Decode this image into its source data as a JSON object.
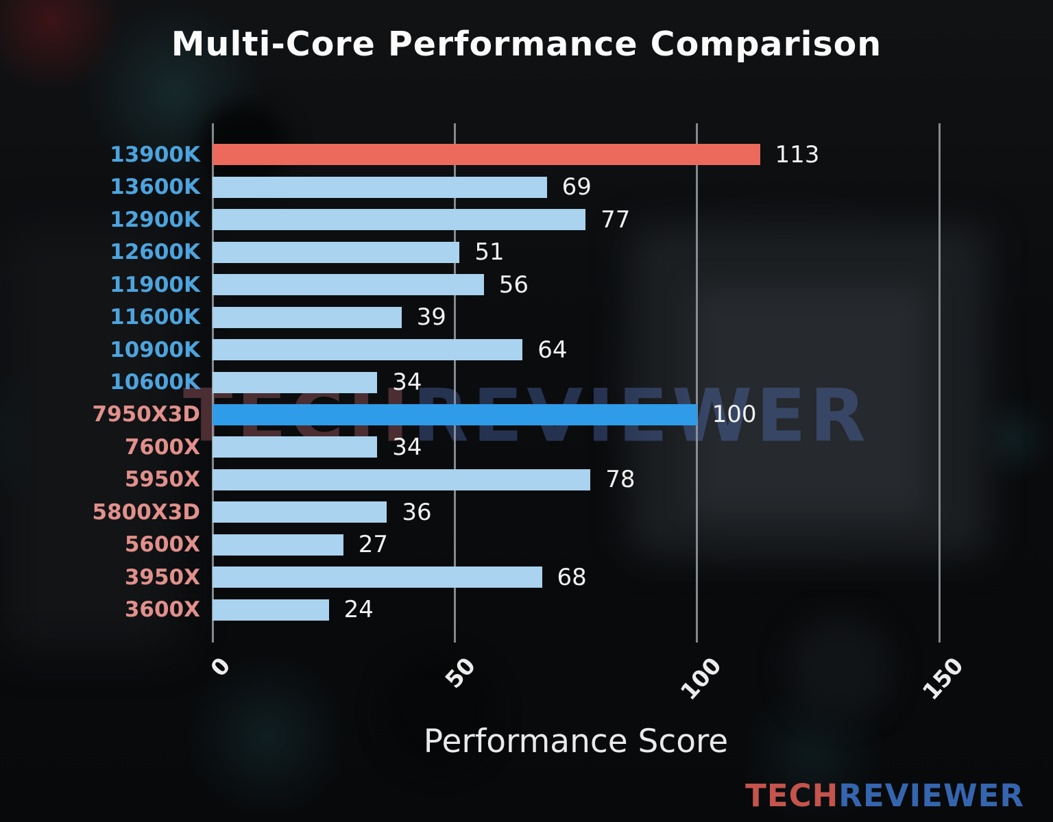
{
  "chart_data": {
    "type": "bar",
    "orientation": "horizontal",
    "title": "Multi-Core Performance Comparison",
    "xlabel": "Performance Score",
    "xlim": [
      0,
      150
    ],
    "xticks": [
      0,
      50,
      100,
      150
    ],
    "grid": "vertical gridlines on",
    "categories": [
      "13900K",
      "13600K",
      "12900K",
      "12600K",
      "11900K",
      "11600K",
      "10900K",
      "10600K",
      "7950X3D",
      "7600X",
      "5950X",
      "5800X3D",
      "5600X",
      "3950X",
      "3600X"
    ],
    "values": [
      113,
      69,
      77,
      51,
      56,
      39,
      64,
      34,
      100,
      34,
      78,
      36,
      27,
      68,
      24
    ],
    "bar_colors": [
      "#eb6a5c",
      "#a9d3ef",
      "#a9d3ef",
      "#a9d3ef",
      "#a9d3ef",
      "#a9d3ef",
      "#a9d3ef",
      "#a9d3ef",
      "#2e9ce9",
      "#a9d3ef",
      "#a9d3ef",
      "#a9d3ef",
      "#a9d3ef",
      "#a9d3ef",
      "#a9d3ef"
    ],
    "label_colors": [
      "#4da4de",
      "#4da4de",
      "#4da4de",
      "#4da4de",
      "#4da4de",
      "#4da4de",
      "#4da4de",
      "#4da4de",
      "#e2908c",
      "#e2908c",
      "#e2908c",
      "#e2908c",
      "#e2908c",
      "#e2908c",
      "#e2908c"
    ],
    "colors": {
      "highlight_bar": "#eb6a5c",
      "accent_bar": "#2e9ce9",
      "default_bar": "#a9d3ef",
      "intel_label": "#4da4de",
      "amd_label": "#e2908c",
      "gridline": "#9aa0a4"
    }
  },
  "watermark": {
    "part1": "TECH",
    "part2": "REVIEWER"
  },
  "logo": {
    "part1": "TECH",
    "part2": "REVIEWER"
  }
}
